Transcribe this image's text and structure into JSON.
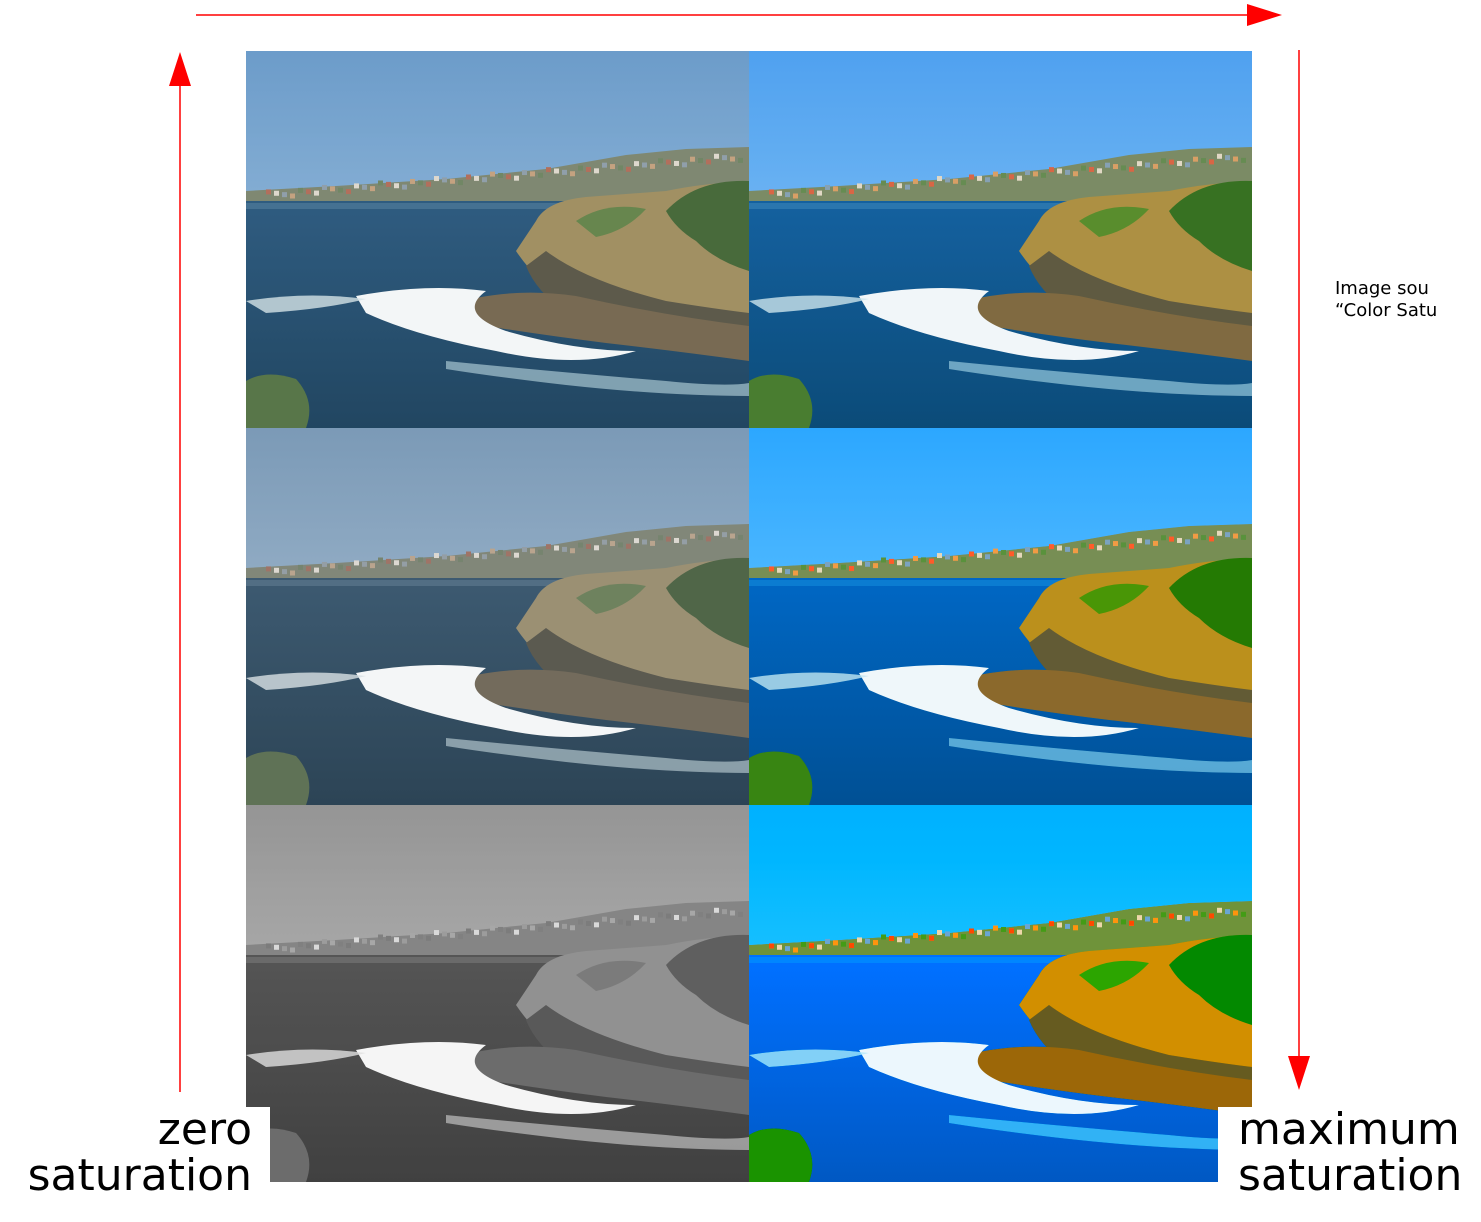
{
  "labels": {
    "zero_line1": "zero",
    "zero_line2": "saturation",
    "max_line1": "maximum",
    "max_line2": "saturation"
  },
  "source": {
    "line1": "Image sou",
    "line2": "“Color Satu"
  },
  "colors": {
    "arrow": "#ff0000"
  },
  "tiles": [
    {
      "name": "tile-r1-left",
      "saturation": 0.7
    },
    {
      "name": "tile-r1-right",
      "saturation": 1.2
    },
    {
      "name": "tile-r2-left",
      "saturation": 0.45
    },
    {
      "name": "tile-r2-right",
      "saturation": 1.8
    },
    {
      "name": "tile-r3-left",
      "saturation": 0
    },
    {
      "name": "tile-r3-right",
      "saturation": 2.8
    }
  ]
}
